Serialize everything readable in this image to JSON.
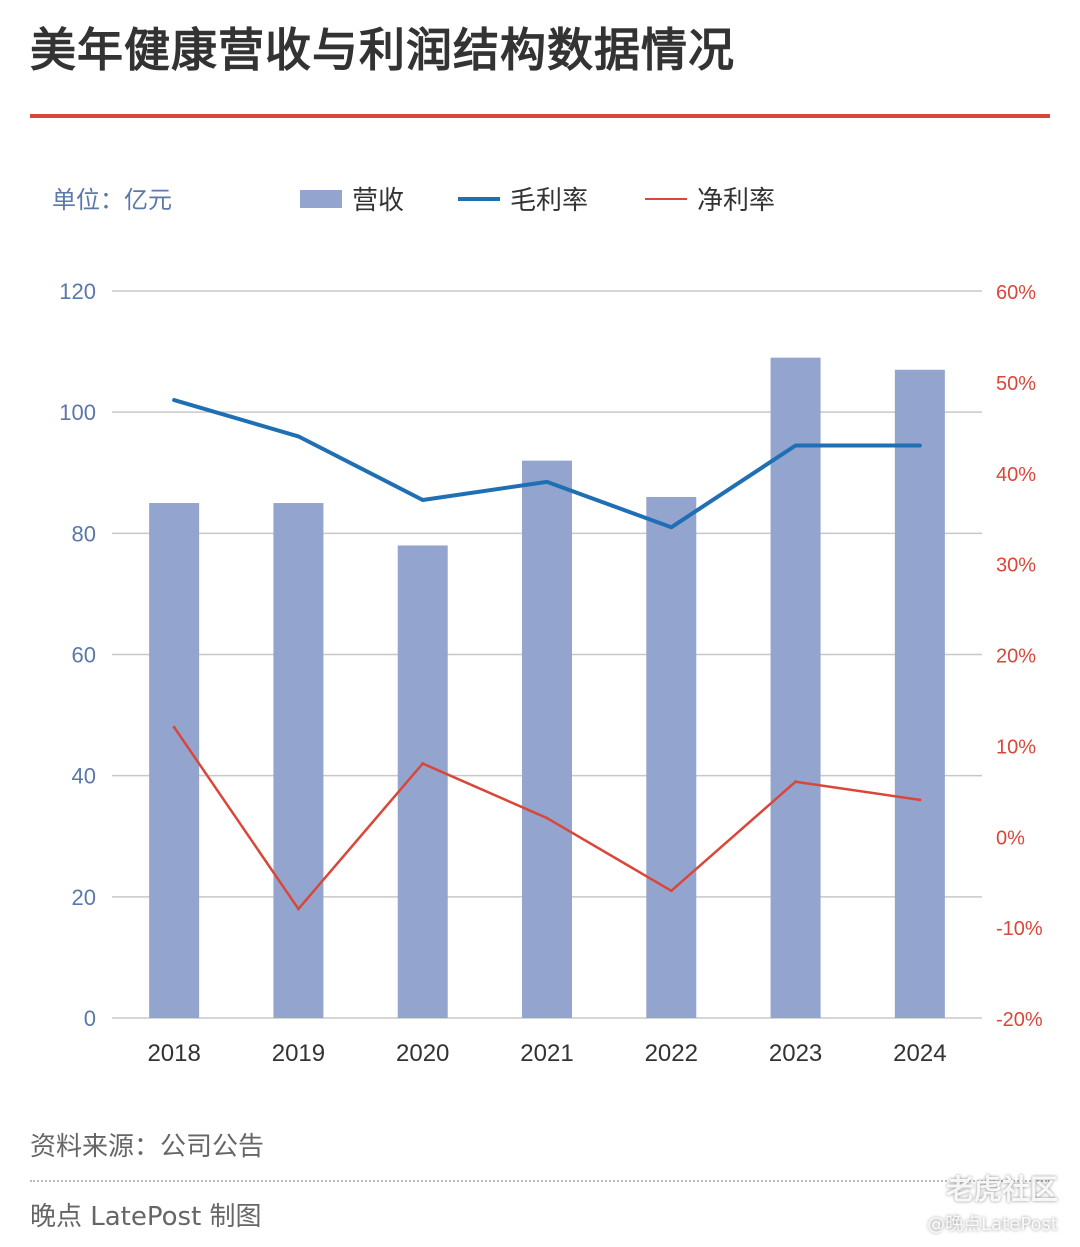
{
  "title": "美年健康营收与利润结构数据情况",
  "unit_label": "单位：亿元",
  "legend": {
    "revenue": "营收",
    "gross_margin": "毛利率",
    "net_margin": "净利率"
  },
  "source": "资料来源：公司公告",
  "credit": "晚点 LatePost 制图",
  "watermark": {
    "site": "老虎社区",
    "handle": "@晚点LatePost"
  },
  "colors": {
    "revenue_bar": "#93a5cf",
    "gross_margin_line": "#1f6fb5",
    "net_margin_line": "#d9473a",
    "left_axis_text": "#5a78aa",
    "right_axis_text": "#d9473a",
    "grid": "#c8c8c8",
    "title_rule": "#d9473a"
  },
  "chart_data": {
    "type": "bar",
    "categories": [
      "2018",
      "2019",
      "2020",
      "2021",
      "2022",
      "2023",
      "2024"
    ],
    "series": [
      {
        "name": "营收",
        "type": "bar",
        "axis": "left",
        "values": [
          85,
          85,
          78,
          92,
          86,
          109,
          107
        ]
      },
      {
        "name": "毛利率",
        "type": "line",
        "axis": "right",
        "values": [
          48,
          44,
          37,
          39,
          34,
          43,
          43
        ]
      },
      {
        "name": "净利率",
        "type": "line",
        "axis": "right",
        "values": [
          12,
          -8,
          8,
          2,
          -6,
          6,
          4
        ]
      }
    ],
    "y_left": {
      "min": 0,
      "max": 120,
      "ticks": [
        "0",
        "20",
        "40",
        "60",
        "80",
        "100",
        "120"
      ]
    },
    "y_right": {
      "min": -20,
      "max": 60,
      "ticks": [
        "-20%",
        "-10%",
        "0%",
        "10%",
        "20%",
        "30%",
        "40%",
        "50%",
        "60%"
      ]
    },
    "grid": true,
    "legend_position": "top"
  }
}
